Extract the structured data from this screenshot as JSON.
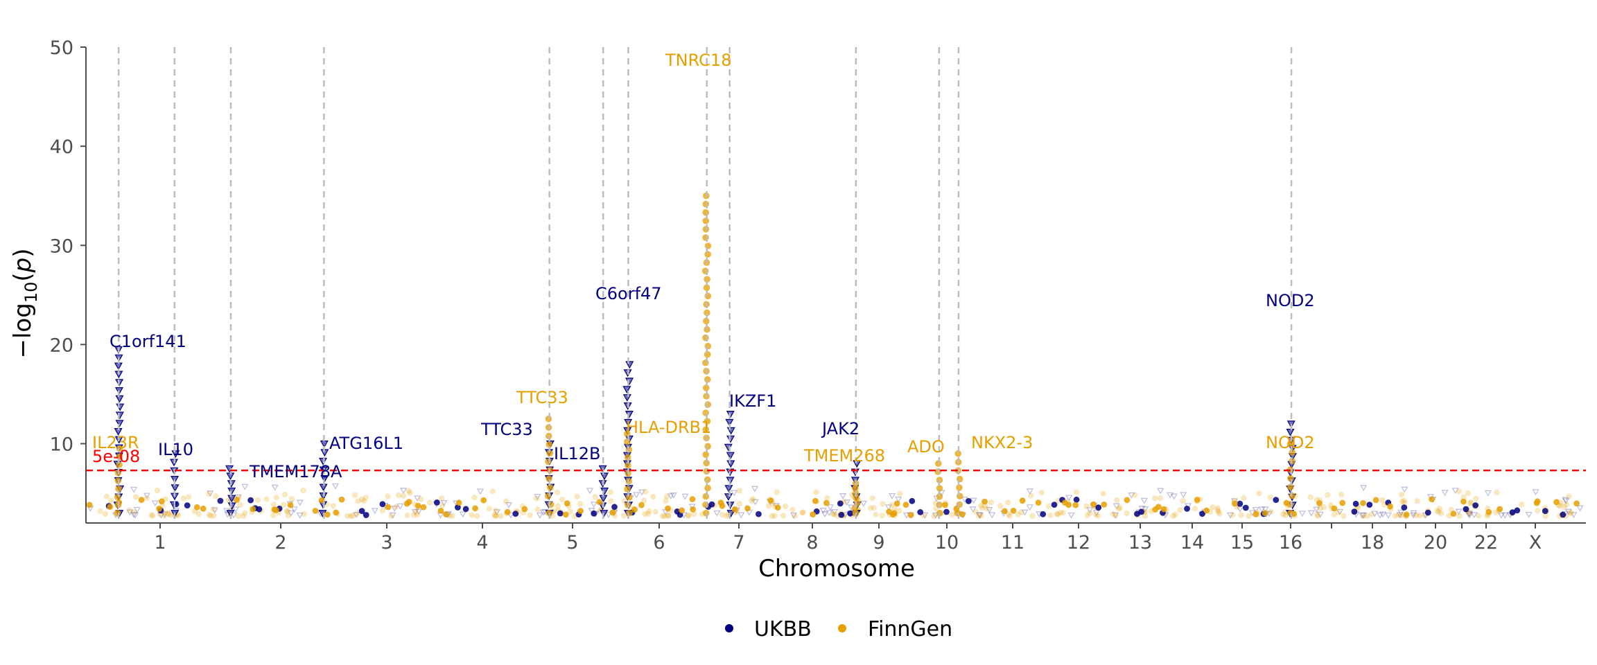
{
  "chart_data": {
    "type": "scatter",
    "xlabel": "Chromosome",
    "ylabel": "-log10(p)",
    "ylim": [
      2,
      50
    ],
    "yticks": [
      10,
      20,
      30,
      40,
      50
    ],
    "threshold": {
      "label": "5e-08",
      "value": 7.3,
      "color": "#ff0000"
    },
    "chromosomes": [
      {
        "name": "1",
        "label": "1"
      },
      {
        "name": "2",
        "label": "2"
      },
      {
        "name": "3",
        "label": "3"
      },
      {
        "name": "4",
        "label": "4"
      },
      {
        "name": "5",
        "label": "5"
      },
      {
        "name": "6",
        "label": "6"
      },
      {
        "name": "7",
        "label": "7"
      },
      {
        "name": "8",
        "label": "8"
      },
      {
        "name": "9",
        "label": "9"
      },
      {
        "name": "10",
        "label": "10"
      },
      {
        "name": "11",
        "label": "11"
      },
      {
        "name": "12",
        "label": "12"
      },
      {
        "name": "13",
        "label": "13"
      },
      {
        "name": "14",
        "label": "14"
      },
      {
        "name": "15",
        "label": "15"
      },
      {
        "name": "16",
        "label": "16"
      },
      {
        "name": "17",
        "label": ""
      },
      {
        "name": "18",
        "label": "18"
      },
      {
        "name": "19",
        "label": ""
      },
      {
        "name": "20",
        "label": "20"
      },
      {
        "name": "21",
        "label": ""
      },
      {
        "name": "22",
        "label": "22"
      },
      {
        "name": "X",
        "label": "X"
      }
    ],
    "series": [
      {
        "name": "UKBB",
        "color": "#000080"
      },
      {
        "name": "FinnGen",
        "color": "#E69F00"
      }
    ],
    "highlight_loci": [
      {
        "gene": "IL23R",
        "series": "FinnGen",
        "chrom": "1",
        "pos": 0.28,
        "y": 9.5
      },
      {
        "gene": "C1orf141",
        "series": "UKBB",
        "chrom": "1",
        "pos": 0.28,
        "y": 19.5
      },
      {
        "gene": "IL10",
        "series": "UKBB",
        "chrom": "1",
        "pos": 0.79,
        "y": 9.0
      },
      {
        "gene": "TMEM178A",
        "series": "UKBB",
        "chrom": "2",
        "pos": 0.25,
        "y": 7.5
      },
      {
        "gene": "ATG16L1",
        "series": "UKBB",
        "chrom": "2",
        "pos": 0.95,
        "y": 10.0
      },
      {
        "gene": "TTC33",
        "series": "UKBB",
        "chrom": "5",
        "pos": 0.27,
        "y": 10.0
      },
      {
        "gene": "TTC33",
        "series": "FinnGen",
        "chrom": "5",
        "pos": 0.27,
        "y": 12.5
      },
      {
        "gene": "IL12B",
        "series": "UKBB",
        "chrom": "5",
        "pos": 0.84,
        "y": 7.5
      },
      {
        "gene": "C6orf47",
        "series": "UKBB",
        "chrom": "6",
        "pos": 0.12,
        "y": 18.0
      },
      {
        "gene": "HLA-DRB1",
        "series": "FinnGen",
        "chrom": "6",
        "pos": 0.12,
        "y": 11.0
      },
      {
        "gene": "TNRC18",
        "series": "FinnGen",
        "chrom": "7",
        "pos": 0.07,
        "y": 35.0
      },
      {
        "gene": "IKZF1",
        "series": "UKBB",
        "chrom": "7",
        "pos": 0.37,
        "y": 13.0
      },
      {
        "gene": "JAK2",
        "series": "UKBB",
        "chrom": "9",
        "pos": 0.08,
        "y": 8.0
      },
      {
        "gene": "TMEM268",
        "series": "FinnGen",
        "chrom": "9",
        "pos": 0.08,
        "y": 6.0
      },
      {
        "gene": "ADO",
        "series": "FinnGen",
        "chrom": "10",
        "pos": 0.2,
        "y": 8.0
      },
      {
        "gene": "NKX2-3",
        "series": "FinnGen",
        "chrom": "10",
        "pos": 0.92,
        "y": 9.0
      },
      {
        "gene": "NOD2",
        "series": "UKBB",
        "chrom": "16",
        "pos": 0.5,
        "y": 12.0
      },
      {
        "gene": "NOD2",
        "series": "FinnGen",
        "chrom": "16",
        "pos": 0.5,
        "y": 10.0
      }
    ]
  },
  "legend": {
    "items": [
      {
        "label": "UKBB",
        "color": "#000080"
      },
      {
        "label": "FinnGen",
        "color": "#E69F00"
      }
    ]
  }
}
